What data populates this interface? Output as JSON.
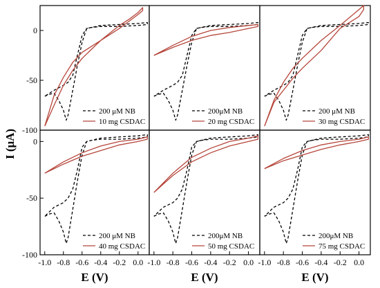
{
  "figure": {
    "ylabel": "I (μA)",
    "xlabel": "E (V)"
  },
  "colors": {
    "reference": "#000000",
    "sample": "#b5453a"
  },
  "chart_data": [
    {
      "type": "line",
      "xlim": [
        -1.05,
        0.12
      ],
      "ylim": [
        -100,
        25
      ],
      "xticks": [],
      "yticks": [
        "0",
        "-50",
        "-100"
      ],
      "legend": [
        "200 μM NB",
        "10 mg CSDAC"
      ],
      "legend_position": "bottom-right",
      "series": [
        {
          "name": "200 μM NB",
          "style": "dashed",
          "x": [
            -1.0,
            -0.95,
            -0.9,
            -0.85,
            -0.8,
            -0.77,
            -0.75,
            -0.7,
            -0.65,
            -0.6,
            -0.55,
            -0.4,
            -0.2,
            0.0,
            0.1,
            0.1,
            0.0,
            -0.2,
            -0.4,
            -0.5,
            -0.55,
            -0.6,
            -0.65,
            -0.7,
            -0.75,
            -0.8,
            -0.9,
            -1.0
          ],
          "y": [
            -66,
            -64,
            -63,
            -70,
            -80,
            -90,
            -85,
            -60,
            -35,
            -12,
            2,
            5,
            6,
            7,
            8,
            6,
            5,
            4,
            4,
            3,
            2,
            -5,
            -25,
            -45,
            -52,
            -55,
            -60,
            -66
          ]
        },
        {
          "name": "10 mg CSDAC",
          "style": "solid",
          "x": [
            -1.0,
            -0.9,
            -0.8,
            -0.7,
            -0.6,
            -0.4,
            -0.2,
            -0.1,
            0.0,
            0.05,
            0.05,
            0.0,
            -0.2,
            -0.4,
            -0.6,
            -0.7,
            -0.8,
            -0.9,
            -1.0
          ],
          "y": [
            -96,
            -75,
            -55,
            -40,
            -28,
            -10,
            5,
            11,
            18,
            23,
            20,
            16,
            2,
            -10,
            -22,
            -32,
            -47,
            -65,
            -96
          ]
        }
      ]
    },
    {
      "type": "line",
      "xlim": [
        -1.05,
        0.12
      ],
      "ylim": [
        -100,
        25
      ],
      "xticks": [],
      "yticks": [],
      "legend": [
        "200μM NB",
        "20 mg CSDAC"
      ],
      "legend_position": "bottom-right",
      "series": [
        {
          "name": "200μM NB",
          "style": "dashed",
          "x": [
            -1.0,
            -0.95,
            -0.9,
            -0.85,
            -0.8,
            -0.77,
            -0.75,
            -0.7,
            -0.65,
            -0.6,
            -0.55,
            -0.4,
            -0.2,
            0.0,
            0.1,
            0.1,
            0.0,
            -0.2,
            -0.4,
            -0.5,
            -0.55,
            -0.6,
            -0.65,
            -0.7,
            -0.75,
            -0.8,
            -0.9,
            -1.0
          ],
          "y": [
            -66,
            -64,
            -63,
            -70,
            -80,
            -90,
            -85,
            -60,
            -35,
            -12,
            2,
            5,
            6,
            7,
            8,
            6,
            5,
            4,
            4,
            3,
            2,
            -5,
            -25,
            -45,
            -52,
            -55,
            -60,
            -66
          ]
        },
        {
          "name": "20 mg CSDAC",
          "style": "solid",
          "x": [
            -1.0,
            -0.8,
            -0.6,
            -0.4,
            -0.2,
            0.0,
            0.1,
            0.1,
            0.0,
            -0.2,
            -0.4,
            -0.6,
            -0.8,
            -1.0
          ],
          "y": [
            -25,
            -15,
            -6,
            0,
            3,
            5,
            6,
            4,
            2,
            -2,
            -5,
            -10,
            -17,
            -25
          ]
        }
      ]
    },
    {
      "type": "line",
      "xlim": [
        -1.05,
        0.12
      ],
      "ylim": [
        -100,
        25
      ],
      "xticks": [],
      "yticks": [],
      "legend": [
        "200 μM NB",
        "30 mg CSDAC"
      ],
      "legend_position": "bottom-right",
      "series": [
        {
          "name": "200 μM NB",
          "style": "dashed",
          "x": [
            -1.0,
            -0.95,
            -0.9,
            -0.85,
            -0.8,
            -0.77,
            -0.75,
            -0.7,
            -0.65,
            -0.6,
            -0.55,
            -0.4,
            -0.2,
            0.0,
            0.1,
            0.1,
            0.0,
            -0.2,
            -0.4,
            -0.5,
            -0.55,
            -0.6,
            -0.65,
            -0.7,
            -0.75,
            -0.8,
            -0.9,
            -1.0
          ],
          "y": [
            -66,
            -64,
            -63,
            -70,
            -80,
            -90,
            -85,
            -60,
            -35,
            -12,
            2,
            5,
            6,
            7,
            8,
            6,
            5,
            4,
            4,
            3,
            2,
            -5,
            -25,
            -45,
            -52,
            -55,
            -60,
            -66
          ]
        },
        {
          "name": "30 mg CSDAC",
          "style": "solid",
          "x": [
            -1.0,
            -0.9,
            -0.8,
            -0.7,
            -0.6,
            -0.4,
            -0.2,
            -0.1,
            0.0,
            0.05,
            0.05,
            0.0,
            -0.2,
            -0.4,
            -0.6,
            -0.7,
            -0.8,
            -0.9,
            -1.0
          ],
          "y": [
            -96,
            -70,
            -52,
            -38,
            -28,
            -10,
            5,
            13,
            21,
            25,
            21,
            14,
            2,
            -20,
            -38,
            -48,
            -60,
            -72,
            -96
          ]
        }
      ]
    },
    {
      "type": "line",
      "xlim": [
        -1.05,
        0.12
      ],
      "ylim": [
        -100,
        10
      ],
      "xticks": [
        "-1.0",
        "-0.8",
        "-0.6",
        "-0.4",
        "-0.2",
        "0.0"
      ],
      "yticks": [
        "0",
        "-50",
        "-100"
      ],
      "legend": [
        "200 μM NB",
        "40 mg CSDAC"
      ],
      "legend_position": "bottom-right",
      "series": [
        {
          "name": "200 μM NB",
          "style": "dashed",
          "x": [
            -1.0,
            -0.95,
            -0.9,
            -0.85,
            -0.8,
            -0.77,
            -0.75,
            -0.7,
            -0.65,
            -0.6,
            -0.55,
            -0.4,
            -0.2,
            0.0,
            0.1,
            0.1,
            0.0,
            -0.2,
            -0.4,
            -0.5,
            -0.55,
            -0.6,
            -0.65,
            -0.7,
            -0.75,
            -0.8,
            -0.9,
            -1.0
          ],
          "y": [
            -66,
            -64,
            -63,
            -70,
            -80,
            -90,
            -85,
            -60,
            -35,
            -12,
            0,
            3,
            4,
            5,
            6,
            4,
            3,
            2,
            2,
            1,
            0,
            -5,
            -25,
            -42,
            -50,
            -54,
            -58,
            -66
          ]
        },
        {
          "name": "40 mg CSDAC",
          "style": "solid",
          "x": [
            -1.0,
            -0.8,
            -0.6,
            -0.4,
            -0.2,
            0.0,
            0.1,
            0.1,
            0.0,
            -0.2,
            -0.4,
            -0.6,
            -0.8,
            -1.0
          ],
          "y": [
            -28,
            -18,
            -10,
            -4,
            0,
            2,
            4,
            2,
            0,
            -3,
            -8,
            -13,
            -20,
            -28
          ]
        }
      ]
    },
    {
      "type": "line",
      "xlim": [
        -1.05,
        0.12
      ],
      "ylim": [
        -100,
        10
      ],
      "xticks": [
        "-1.0",
        "-0.8",
        "-0.6",
        "-0.4",
        "-0.2",
        "0.0"
      ],
      "yticks": [],
      "legend": [
        "200μM NB",
        "50 mg CSDAC"
      ],
      "legend_position": "bottom-right",
      "series": [
        {
          "name": "200μM NB",
          "style": "dashed",
          "x": [
            -1.0,
            -0.95,
            -0.9,
            -0.85,
            -0.8,
            -0.77,
            -0.75,
            -0.7,
            -0.65,
            -0.6,
            -0.55,
            -0.4,
            -0.2,
            0.0,
            0.1,
            0.1,
            0.0,
            -0.2,
            -0.4,
            -0.5,
            -0.55,
            -0.6,
            -0.65,
            -0.7,
            -0.75,
            -0.8,
            -0.9,
            -1.0
          ],
          "y": [
            -66,
            -64,
            -63,
            -70,
            -80,
            -90,
            -85,
            -60,
            -35,
            -12,
            0,
            3,
            4,
            5,
            6,
            4,
            3,
            2,
            2,
            1,
            0,
            -5,
            -25,
            -42,
            -50,
            -54,
            -58,
            -66
          ]
        },
        {
          "name": "50 mg CSDAC",
          "style": "solid",
          "x": [
            -1.0,
            -0.8,
            -0.6,
            -0.4,
            -0.2,
            0.0,
            0.1,
            0.1,
            0.0,
            -0.2,
            -0.4,
            -0.6,
            -0.8,
            -1.0
          ],
          "y": [
            -45,
            -28,
            -14,
            -6,
            0,
            3,
            5,
            2,
            0,
            -4,
            -10,
            -18,
            -30,
            -45
          ]
        }
      ]
    },
    {
      "type": "line",
      "xlim": [
        -1.05,
        0.12
      ],
      "ylim": [
        -100,
        10
      ],
      "xticks": [
        "-1.0",
        "-0.8",
        "-0.6",
        "-0.4",
        "-0.2",
        "0.0"
      ],
      "yticks": [],
      "legend": [
        "200μM NB",
        "75 mg CSDAC"
      ],
      "legend_position": "bottom-right",
      "series": [
        {
          "name": "200μM NB",
          "style": "dashed",
          "x": [
            -1.0,
            -0.95,
            -0.9,
            -0.85,
            -0.8,
            -0.77,
            -0.75,
            -0.7,
            -0.65,
            -0.6,
            -0.55,
            -0.4,
            -0.2,
            0.0,
            0.1,
            0.1,
            0.0,
            -0.2,
            -0.4,
            -0.5,
            -0.55,
            -0.6,
            -0.65,
            -0.7,
            -0.75,
            -0.8,
            -0.9,
            -1.0
          ],
          "y": [
            -66,
            -64,
            -63,
            -70,
            -80,
            -90,
            -85,
            -60,
            -35,
            -12,
            0,
            3,
            4,
            5,
            6,
            4,
            3,
            2,
            2,
            1,
            0,
            -5,
            -25,
            -42,
            -50,
            -54,
            -58,
            -66
          ]
        },
        {
          "name": "75 mg CSDAC",
          "style": "solid",
          "x": [
            -1.0,
            -0.8,
            -0.6,
            -0.4,
            -0.2,
            0.0,
            0.1,
            0.1,
            0.0,
            -0.2,
            -0.4,
            -0.6,
            -0.8,
            -1.0
          ],
          "y": [
            -24,
            -15,
            -8,
            -3,
            0,
            2,
            4,
            2,
            0,
            -3,
            -7,
            -12,
            -17,
            -24
          ]
        }
      ]
    }
  ]
}
